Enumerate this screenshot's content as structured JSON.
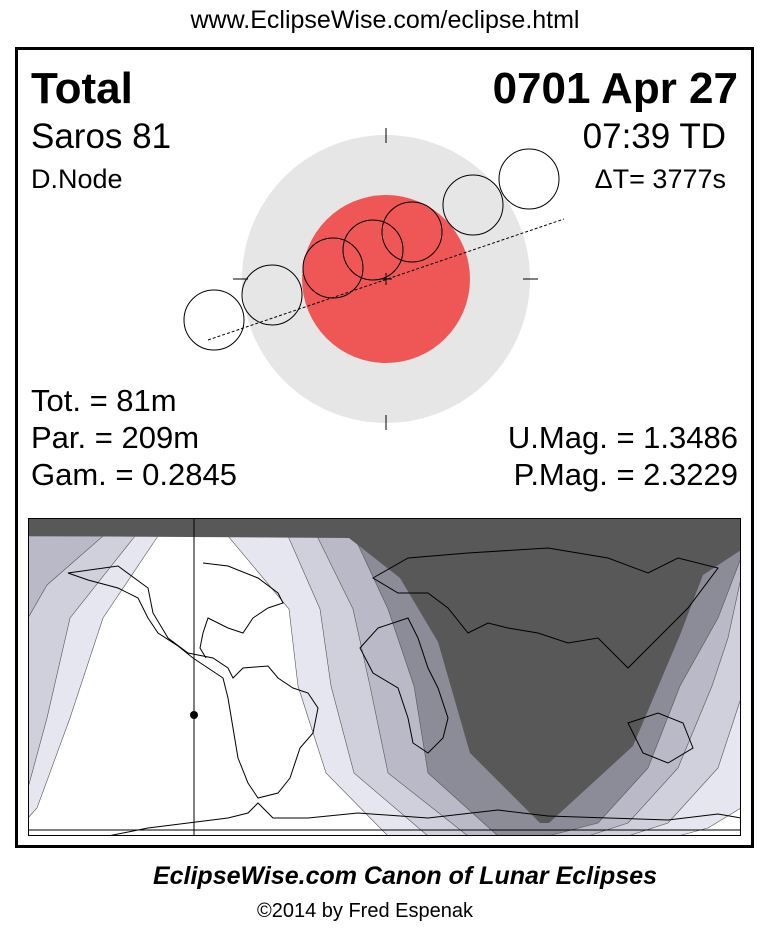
{
  "header": {
    "url": "www.EclipseWise.com/eclipse.html"
  },
  "eclipse": {
    "type": "Total",
    "date": "0701 Apr 27",
    "saros": "Saros  81",
    "time": "07:39 TD",
    "node": "D.Node",
    "delta_t": "ΔT=   3777s",
    "totality": "Tot. =  81m",
    "partial": "Par. = 209m",
    "gamma": "Gam. = 0.2845",
    "umbral_mag": "U.Mag. = 1.3486",
    "penumbral_mag": "P.Mag. = 2.3229"
  },
  "colors": {
    "umbra": "#ef5757",
    "penumbra": "#e6e6e6",
    "night": "#585858",
    "band1": "#e6e6f0",
    "band2": "#d0d0dc",
    "band3": "#b9b9c7",
    "band4": "#8c8c98"
  },
  "footer": {
    "title": "EclipseWise.com Canon of Lunar Eclipses",
    "copyright": "©2014 by Fred Espenak"
  }
}
